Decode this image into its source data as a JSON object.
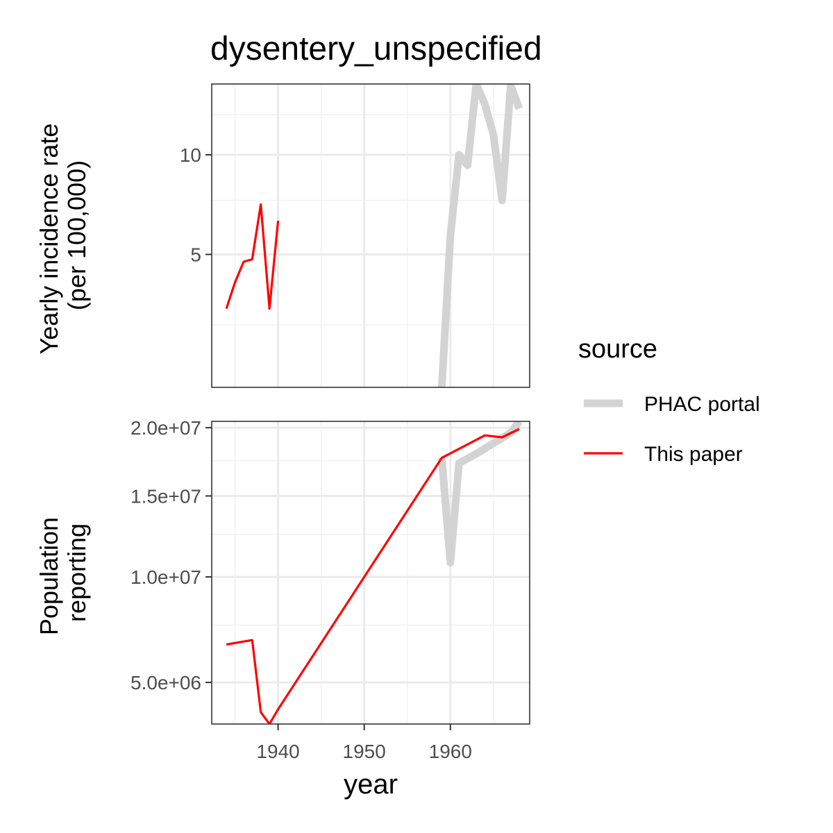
{
  "chart_data": {
    "type": "line",
    "title": "dysentery_unspecified",
    "xlabel": "year",
    "x_ticks": [
      1940,
      1950,
      1960
    ],
    "xlim": [
      1932.3,
      1969.2
    ],
    "legend": {
      "title": "source",
      "position": "right",
      "entries": [
        {
          "label": "PHAC portal",
          "color": "#d3d3d3"
        },
        {
          "label": "This paper",
          "color": "#ff0000"
        }
      ]
    },
    "panels": [
      {
        "ylabel_lines": [
          "Yearly incidence rate",
          "(per 100,000)"
        ],
        "scale": "sqrt",
        "ylim": [
          1.0,
          14.6
        ],
        "y_ticks": [
          5,
          10
        ],
        "y_tick_labels": [
          "5",
          "10"
        ],
        "y_minor": [
          2.5,
          7.5,
          12.5
        ],
        "series": [
          {
            "name": "PHAC portal",
            "x": [
              1959,
              1960,
              1961,
              1962,
              1963,
              1964,
              1965,
              1966,
              1967,
              1968
            ],
            "values": [
              1.0,
              5.8,
              10.0,
              9.4,
              14.6,
              13.2,
              11.2,
              7.5,
              14.5,
              12.9
            ]
          },
          {
            "name": "This paper",
            "x": [
              1934,
              1935,
              1936,
              1937,
              1938,
              1939,
              1940
            ],
            "values": [
              3.0,
              3.9,
              4.7,
              4.8,
              7.3,
              3.0,
              6.5
            ]
          }
        ]
      },
      {
        "ylabel_lines": [
          "Population",
          "reporting"
        ],
        "scale": "sqrt",
        "ylim": [
          3500000,
          20500000
        ],
        "y_ticks": [
          5000000,
          10000000,
          15000000,
          20000000
        ],
        "y_tick_labels": [
          "5.0e+06",
          "1.0e+07",
          "1.5e+07",
          "2.0e+07"
        ],
        "y_minor": [
          7500000,
          12500000,
          17500000
        ],
        "series": [
          {
            "name": "PHAC portal",
            "x": [
              1959,
              1960,
              1961,
              1962,
              1963,
              1964,
              1965,
              1966,
              1967,
              1968
            ],
            "values": [
              17700000,
              10800000,
              17300000,
              17650000,
              18000000,
              18400000,
              18800000,
              19200000,
              19600000,
              20500000
            ]
          },
          {
            "name": "This paper",
            "x": [
              1934,
              1937,
              1938,
              1939,
              1940,
              1959,
              1964,
              1966,
              1968
            ],
            "values": [
              6600000,
              6800000,
              3900000,
              3500000,
              4000000,
              17700000,
              19400000,
              19250000,
              19900000
            ]
          }
        ]
      }
    ]
  }
}
